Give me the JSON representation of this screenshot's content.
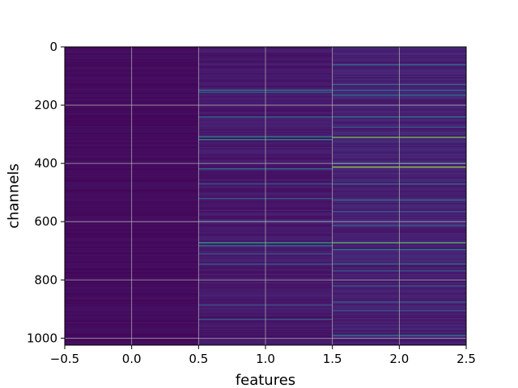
{
  "chart_data": {
    "type": "heatmap",
    "title": "",
    "xlabel": "features",
    "ylabel": "channels",
    "xlim": [
      -0.5,
      2.5
    ],
    "ylim": [
      1024,
      0
    ],
    "y_inverted": true,
    "xticks": [
      -0.5,
      0.0,
      0.5,
      1.0,
      1.5,
      2.0,
      2.5
    ],
    "xtick_labels": [
      "−0.5",
      "0.0",
      "0.5",
      "1.0",
      "1.5",
      "2.0",
      "2.5"
    ],
    "yticks": [
      0,
      200,
      400,
      600,
      800,
      1000
    ],
    "ytick_labels": [
      "0",
      "200",
      "400",
      "600",
      "800",
      "1000"
    ],
    "grid": true,
    "colormap": "viridis",
    "background_color": "#440154",
    "n_channels": 1024,
    "n_features": 3,
    "columns": [
      {
        "feature": 0,
        "base_level": 0.04,
        "highlights": []
      },
      {
        "feature": 1,
        "base_level": 0.09,
        "highlights": [
          {
            "channel": 148,
            "level": 0.55
          },
          {
            "channel": 155,
            "level": 0.45
          },
          {
            "channel": 240,
            "level": 0.5
          },
          {
            "channel": 308,
            "level": 0.6
          },
          {
            "channel": 318,
            "level": 0.65
          },
          {
            "channel": 418,
            "level": 0.5
          },
          {
            "channel": 470,
            "level": 0.35
          },
          {
            "channel": 520,
            "level": 0.35
          },
          {
            "channel": 598,
            "level": 0.3
          },
          {
            "channel": 672,
            "level": 0.7
          },
          {
            "channel": 682,
            "level": 0.6
          },
          {
            "channel": 710,
            "level": 0.35
          },
          {
            "channel": 745,
            "level": 0.4
          },
          {
            "channel": 885,
            "level": 0.35
          },
          {
            "channel": 935,
            "level": 0.4
          }
        ]
      },
      {
        "feature": 2,
        "base_level": 0.12,
        "highlights": [
          {
            "channel": 0,
            "level": 0.4
          },
          {
            "channel": 60,
            "level": 0.5
          },
          {
            "channel": 128,
            "level": 0.45
          },
          {
            "channel": 148,
            "level": 0.45
          },
          {
            "channel": 165,
            "level": 0.5
          },
          {
            "channel": 240,
            "level": 0.55
          },
          {
            "channel": 275,
            "level": 0.35
          },
          {
            "channel": 310,
            "level": 0.85
          },
          {
            "channel": 400,
            "level": 0.55
          },
          {
            "channel": 412,
            "level": 0.9
          },
          {
            "channel": 470,
            "level": 0.4
          },
          {
            "channel": 525,
            "level": 0.45
          },
          {
            "channel": 565,
            "level": 0.4
          },
          {
            "channel": 612,
            "level": 0.4
          },
          {
            "channel": 672,
            "level": 0.8
          },
          {
            "channel": 695,
            "level": 0.5
          },
          {
            "channel": 745,
            "level": 0.45
          },
          {
            "channel": 768,
            "level": 0.4
          },
          {
            "channel": 820,
            "level": 0.4
          },
          {
            "channel": 875,
            "level": 0.4
          },
          {
            "channel": 905,
            "level": 0.35
          },
          {
            "channel": 990,
            "level": 0.55
          }
        ]
      }
    ]
  }
}
